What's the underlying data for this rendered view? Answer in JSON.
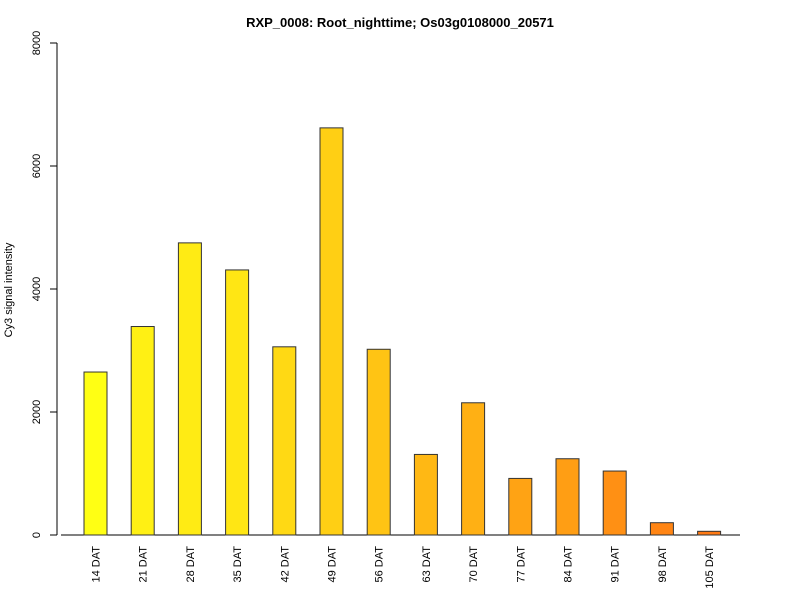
{
  "chart_data": {
    "type": "bar",
    "title": "RXP_0008: Root_nighttime; Os03g0108000_20571",
    "xlabel": "",
    "ylabel": "Cy3 signal intensity",
    "ylim": [
      0,
      8000
    ],
    "yticks": [
      0,
      2000,
      4000,
      6000,
      8000
    ],
    "grid": false,
    "categories": [
      "14 DAT",
      "21 DAT",
      "28 DAT",
      "35 DAT",
      "42 DAT",
      "49 DAT",
      "56 DAT",
      "63 DAT",
      "70 DAT",
      "77 DAT",
      "84 DAT",
      "91 DAT",
      "98 DAT",
      "105 DAT"
    ],
    "values": [
      2650,
      3390,
      4750,
      4310,
      3060,
      6620,
      3020,
      1310,
      2150,
      920,
      1240,
      1040,
      200,
      60
    ],
    "colors": [
      "#ffff14",
      "#fff014",
      "#ffeb14",
      "#ffe614",
      "#ffd914",
      "#ffcf14",
      "#ffc414",
      "#ffb814",
      "#ffb014",
      "#ffa314",
      "#ff9e14",
      "#ff9014",
      "#ff8514",
      "#ff7a14"
    ]
  }
}
